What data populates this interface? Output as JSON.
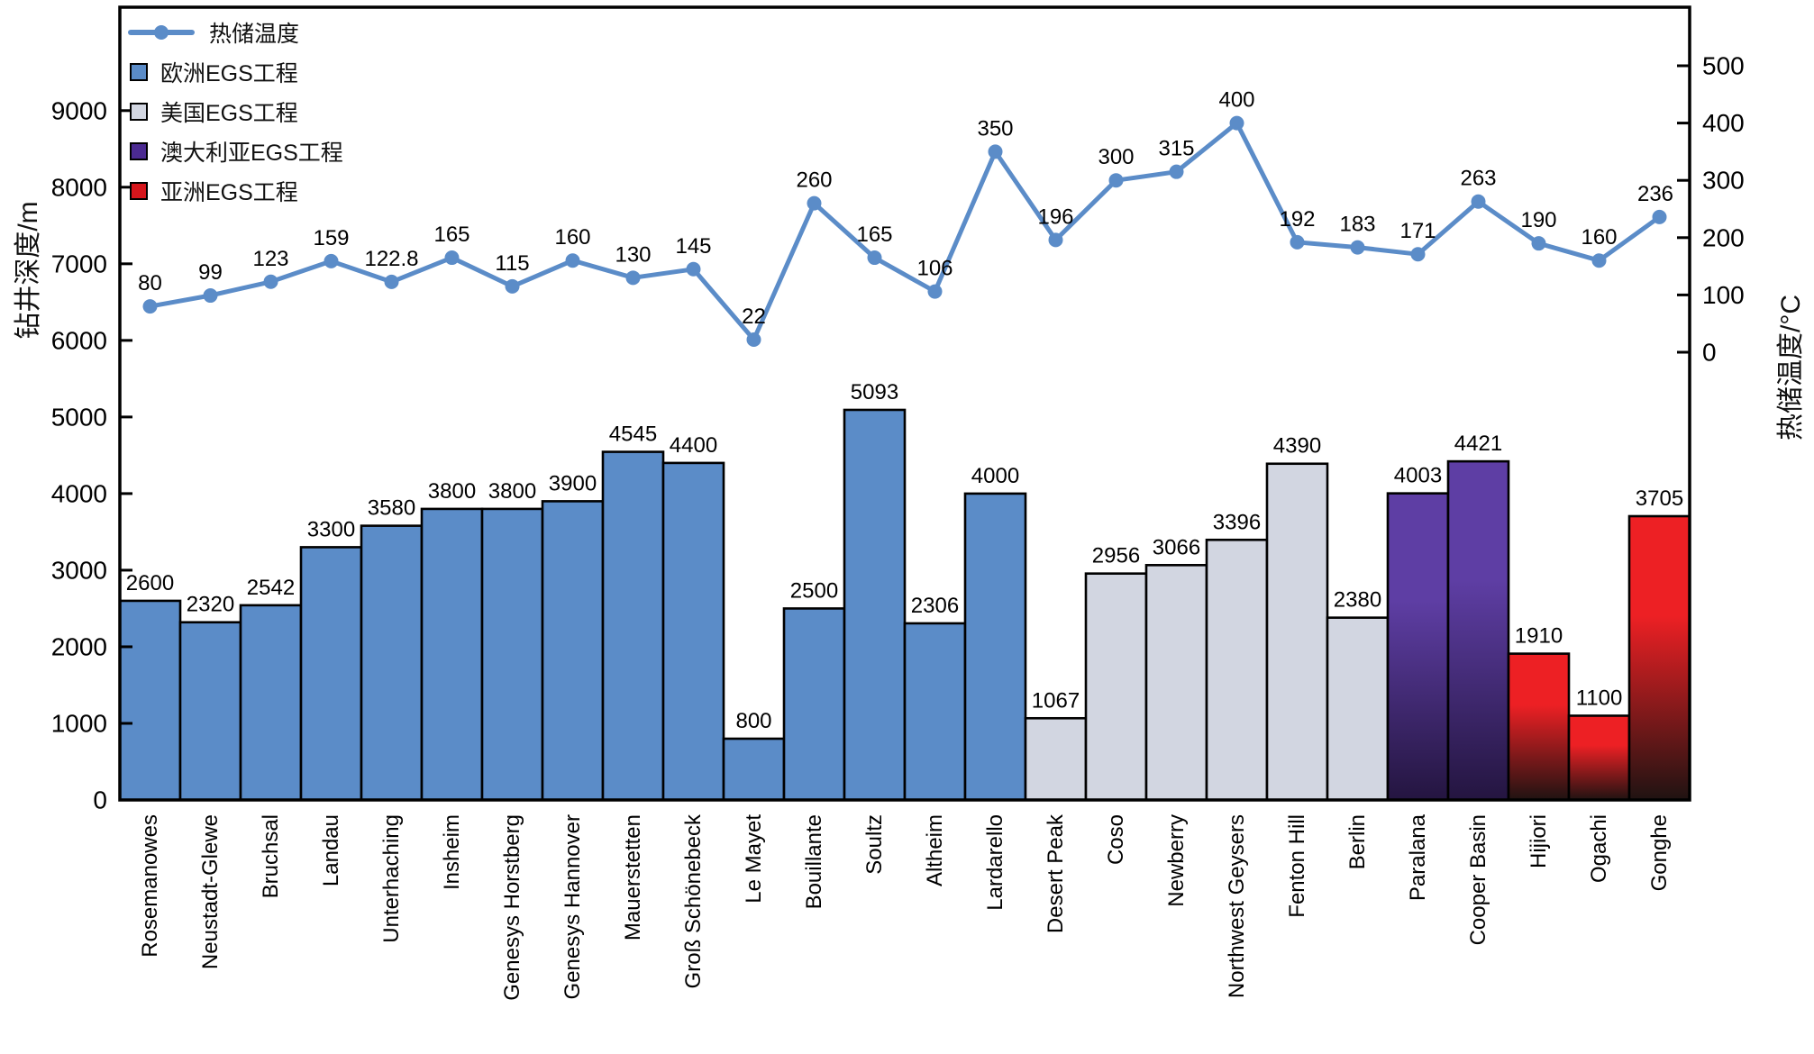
{
  "chart_data": {
    "type": "bar",
    "title": "",
    "categories": [
      "Rosemanowes",
      "Neustadt-Glewe",
      "Bruchsal",
      "Landau",
      "Unterhaching",
      "Insheim",
      "Genesys Horstberg",
      "Genesys Hannover",
      "Mauerstetten",
      "Groß Schönebeck",
      "Le Mayet",
      "Bouillante",
      "Soultz",
      "Altheim",
      "Lardarello",
      "Desert Peak",
      "Coso",
      "Newberry",
      "Northwest Geysers",
      "Fenton Hill",
      "Berlin",
      "Paralana",
      "Cooper Basin",
      "Hijiori",
      "Ogachi",
      "Gonghe"
    ],
    "series": [
      {
        "name": "钻井深度",
        "type": "bar",
        "unit": "m",
        "axis": "left",
        "values": [
          2600,
          2320,
          2542,
          3300,
          3580,
          3800,
          3800,
          3900,
          4545,
          4400,
          800,
          2500,
          5093,
          2306,
          4000,
          1067,
          2956,
          3066,
          3396,
          4390,
          2380,
          4003,
          4421,
          1910,
          1100,
          3705
        ]
      },
      {
        "name": "热储温度",
        "type": "line",
        "unit": "°C",
        "axis": "right",
        "values": [
          80,
          99,
          123,
          159,
          122.8,
          165,
          115,
          160,
          130,
          145,
          22,
          260,
          165,
          106,
          350,
          196,
          300,
          315,
          400,
          192,
          183,
          171,
          263,
          190,
          160,
          236
        ]
      }
    ],
    "bar_groups": [
      {
        "label": "欧洲EGS工程",
        "start": 0,
        "end": 14,
        "fill": "#5B8CC8"
      },
      {
        "label": "美国EGS工程",
        "start": 15,
        "end": 20,
        "fill": "#D2D6E1"
      },
      {
        "label": "澳大利亚EGS工程",
        "start": 21,
        "end": 22,
        "fill_top": "#5E3EA4",
        "fill_bottom": "#241540"
      },
      {
        "label": "亚洲EGS工程",
        "start": 23,
        "end": 25,
        "fill_top": "#ED2024",
        "fill_bottom": "#201312"
      }
    ],
    "left_axis": {
      "title": "钻井深度/m",
      "ticks": [
        0,
        1000,
        2000,
        3000,
        4000,
        5000,
        6000,
        7000,
        8000,
        9000
      ],
      "min": 0,
      "max": 10350
    },
    "right_axis": {
      "title": "热储温度/°C",
      "ticks": [
        0,
        100,
        200,
        300,
        400,
        500
      ]
    },
    "legend": [
      {
        "label": "热储温度",
        "type": "line",
        "color": "#5B8CC8"
      },
      {
        "label": "欧洲EGS工程",
        "type": "square",
        "color": "#5B8CC8"
      },
      {
        "label": "美国EGS工程",
        "type": "square",
        "color": "#D2D6E1"
      },
      {
        "label": "澳大利亚EGS工程",
        "type": "square",
        "color": "#4B2A91"
      },
      {
        "label": "亚洲EGS工程",
        "type": "square",
        "color": "#D6161C"
      }
    ],
    "line_color": "#5B8CC8",
    "grid": false,
    "legend_position": "top-left"
  }
}
